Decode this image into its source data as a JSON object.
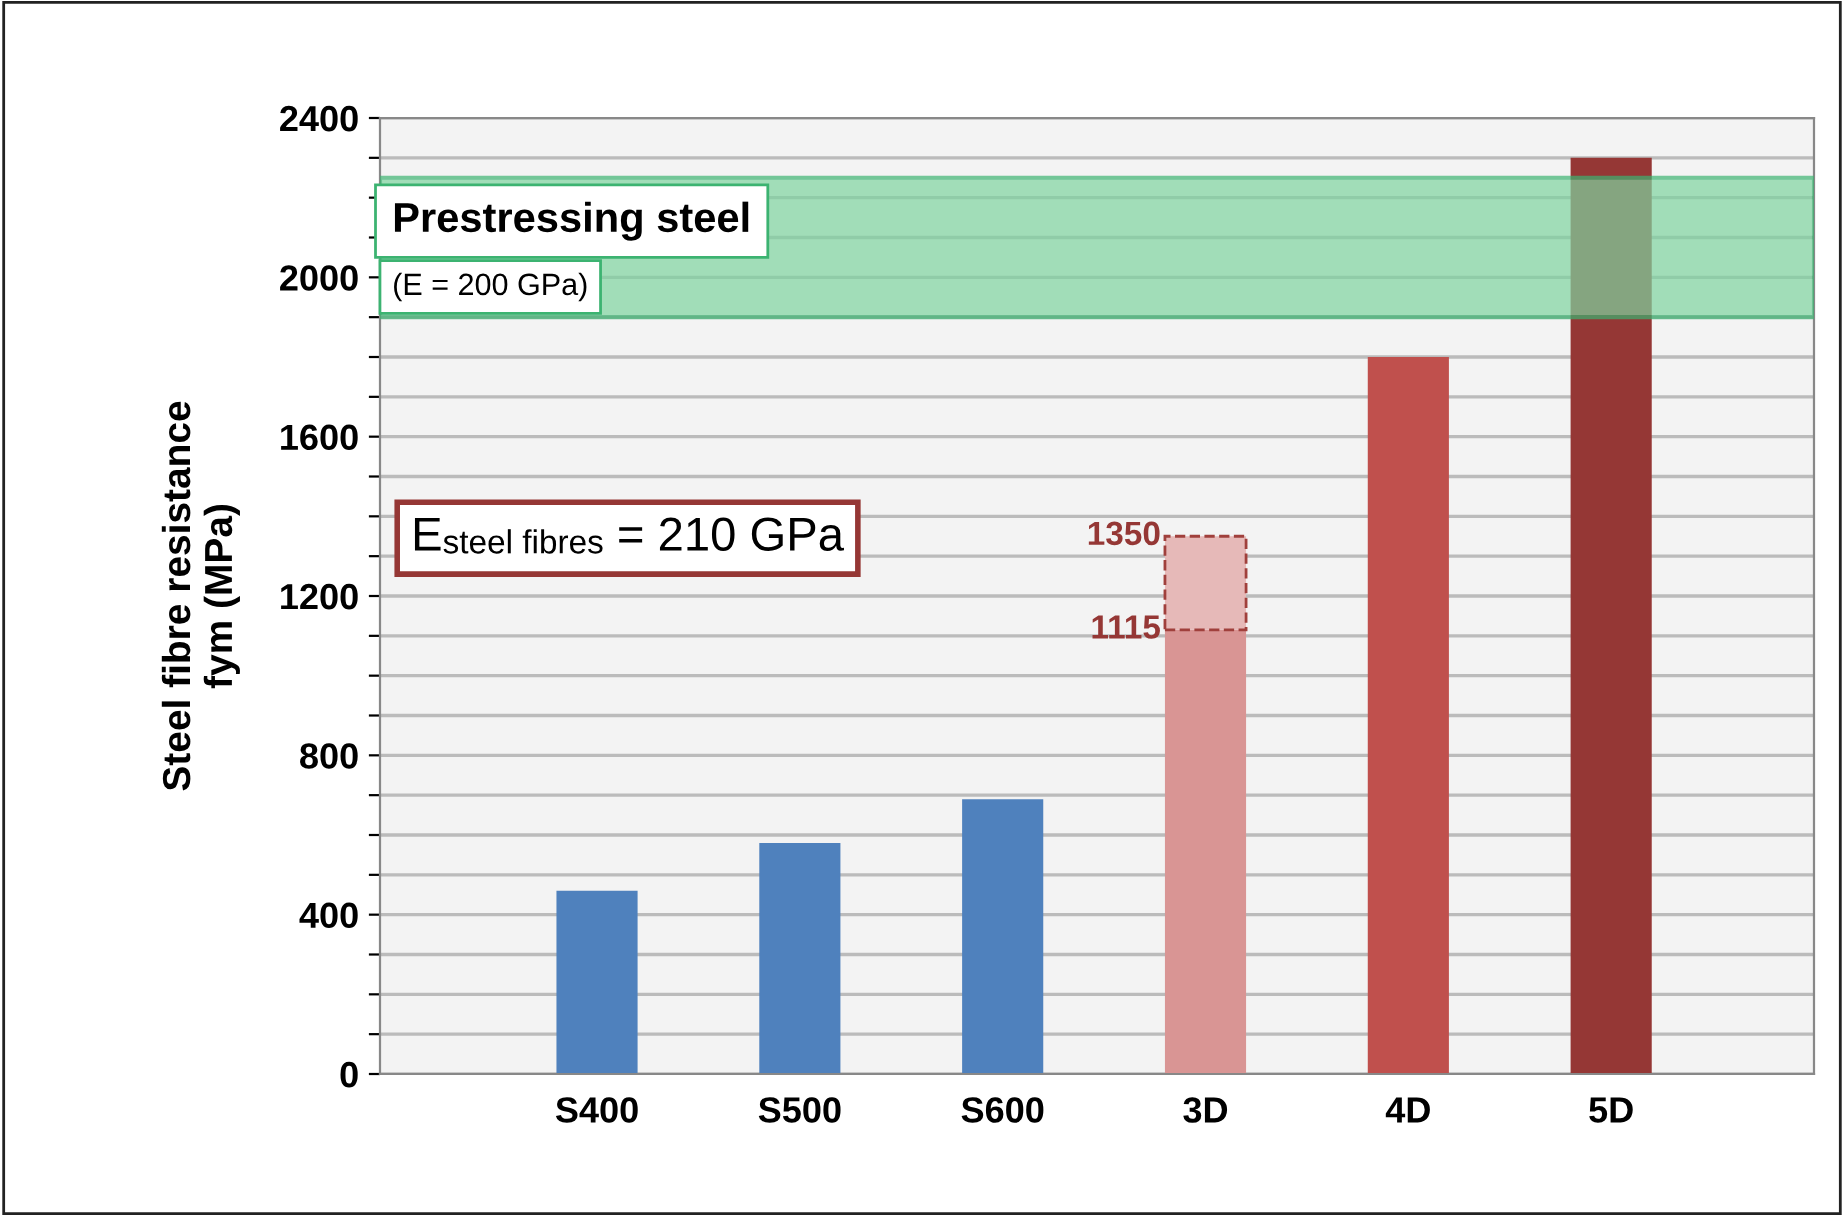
{
  "chart_data": {
    "type": "bar",
    "ylabel": "Steel fibre resistance\nfym (MPa)",
    "categories": [
      "S400",
      "S500",
      "S600",
      "3D",
      "4D",
      "5D"
    ],
    "stacked": true,
    "series": [
      {
        "values": [
          460,
          580,
          690,
          1115,
          1800,
          2300
        ],
        "colors": [
          "#4f81bd",
          "#4f81bd",
          "#4f81bd",
          "#d99594",
          "#c0504d",
          "#953735"
        ]
      },
      {
        "values": [
          null,
          null,
          null,
          235,
          null,
          null
        ],
        "color": "#e6b9b8",
        "line_style": "dashed"
      }
    ],
    "ylim": [
      0,
      2400
    ],
    "yticks": [
      0,
      {
        "value": 100,
        "label": null
      },
      {
        "value": 200,
        "label": null
      },
      {
        "value": 300,
        "label": null
      },
      400,
      {
        "value": 500,
        "label": null
      },
      {
        "value": 600,
        "label": null
      },
      {
        "value": 700,
        "label": null
      },
      800,
      {
        "value": 900,
        "label": null
      },
      {
        "value": 1000,
        "label": null
      },
      {
        "value": 1100,
        "label": null
      },
      1200,
      {
        "value": 1300,
        "label": null
      },
      {
        "value": 1400,
        "label": null
      },
      {
        "value": 1500,
        "label": null
      },
      1600,
      {
        "value": 1700,
        "label": null
      },
      {
        "value": 1800,
        "label": null
      },
      {
        "value": 1900,
        "label": null
      },
      2000,
      {
        "value": 2100,
        "label": null
      },
      {
        "value": 2200,
        "label": null
      },
      {
        "value": 2300,
        "label": null
      },
      2400
    ],
    "grid": "y",
    "bands": [
      {
        "axis": "y",
        "from": 1900,
        "to": 2250,
        "label": "Prestressing steel",
        "color": "#7fd4a0"
      }
    ],
    "annotations": [
      "(E = 200 GPa)",
      "E$_{steel fibres}$ = 210 GPa",
      {
        "text": "1350",
        "x": "3D",
        "y": 1350
      },
      {
        "text": "1115",
        "x": "3D",
        "y": 1115
      }
    ]
  }
}
